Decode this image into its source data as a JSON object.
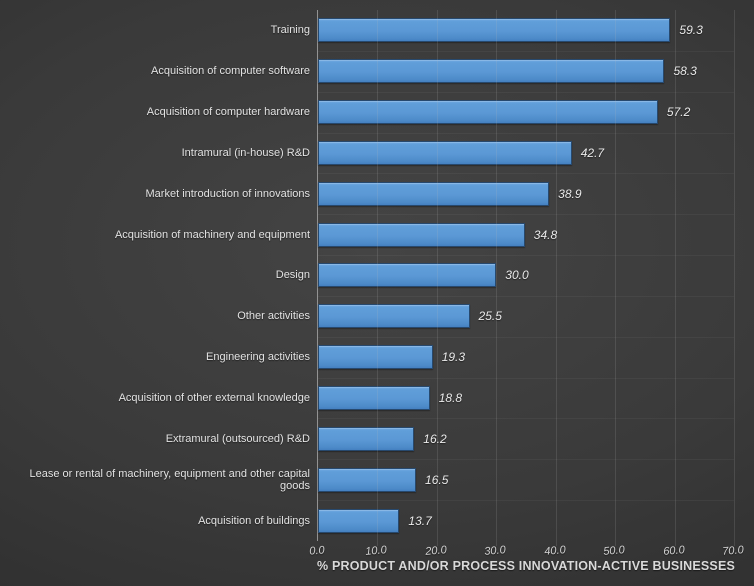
{
  "chart_data": {
    "type": "bar",
    "orientation": "horizontal",
    "categories": [
      "Training",
      "Acquisition of computer software",
      "Acquisition of computer hardware",
      "Intramural (in-house) R&D",
      "Market introduction of innovations",
      "Acquisition of machinery and equipment",
      "Design",
      "Other activities",
      "Engineering activities",
      "Acquisition of other external knowledge",
      "Extramural (outsourced) R&D",
      "Lease or rental of machinery, equipment and other capital goods",
      "Acquisition of buildings"
    ],
    "values": [
      59.3,
      58.3,
      57.2,
      42.7,
      38.9,
      34.8,
      30.0,
      25.5,
      19.3,
      18.8,
      16.2,
      16.5,
      13.7
    ],
    "value_label_decimals": 1,
    "title": "",
    "xlabel": "% PRODUCT AND/OR PROCESS INNOVATION-ACTIVE BUSINESSES",
    "ylabel": "",
    "xlim": [
      0,
      70
    ],
    "xticks": [
      "0.0",
      "10.0",
      "20.0",
      "30.0",
      "40.0",
      "50.0",
      "60.0",
      "70.0"
    ],
    "grid": true,
    "legend": false,
    "colors": {
      "bar_fill": "#5b9bd5",
      "bar_fill_light": "#72aae1",
      "bar_fill_dark": "#4480c0",
      "bar_border": "#27496e",
      "background_center": "#444444",
      "background_edge": "#232323",
      "gridline": "#5a5a5a",
      "axis_line": "#939393",
      "text": "#e3e3e3"
    }
  }
}
